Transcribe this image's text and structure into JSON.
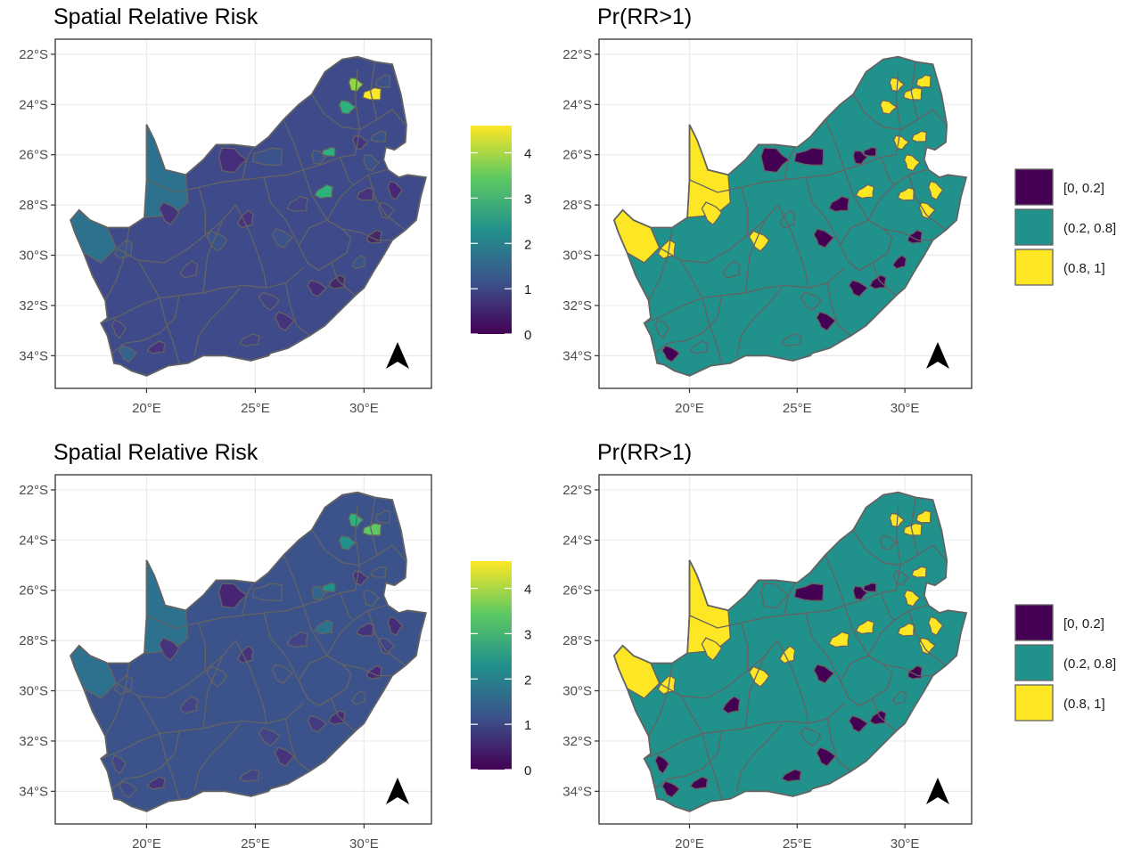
{
  "panels": [
    {
      "id": "p1",
      "title": "Spatial Relative Risk",
      "kind": "continuous",
      "lat_ticks": [
        "22°S",
        "24°S",
        "26°S",
        "28°S",
        "30°S",
        "32°S",
        "34°S"
      ],
      "lon_ticks": [
        "20°E",
        "25°E",
        "30°E"
      ],
      "legend": {
        "ticks": [
          "0",
          "1",
          "2",
          "3",
          "4"
        ],
        "range": [
          0,
          4.6
        ]
      },
      "variant": "a"
    },
    {
      "id": "p2",
      "title": "Pr(RR>1)",
      "kind": "categorical",
      "lat_ticks": [
        "22°S",
        "24°S",
        "26°S",
        "28°S",
        "30°S",
        "32°S",
        "34°S"
      ],
      "lon_ticks": [
        "20°E",
        "25°E",
        "30°E"
      ],
      "legend": {
        "classes": [
          "[0, 0.2]",
          "(0.2, 0.8]",
          "(0.8, 1]"
        ]
      },
      "variant": "a"
    },
    {
      "id": "p3",
      "title": "Spatial Relative Risk",
      "kind": "continuous",
      "lat_ticks": [
        "22°S",
        "24°S",
        "26°S",
        "28°S",
        "30°S",
        "32°S",
        "34°S"
      ],
      "lon_ticks": [
        "20°E",
        "25°E",
        "30°E"
      ],
      "legend": {
        "ticks": [
          "0",
          "1",
          "2",
          "3",
          "4"
        ],
        "range": [
          0,
          4.6
        ]
      },
      "variant": "b"
    },
    {
      "id": "p4",
      "title": "Pr(RR>1)",
      "kind": "categorical",
      "lat_ticks": [
        "22°S",
        "24°S",
        "26°S",
        "28°S",
        "30°S",
        "32°S",
        "34°S"
      ],
      "lon_ticks": [
        "20°E",
        "25°E",
        "30°E"
      ],
      "legend": {
        "classes": [
          "[0, 0.2]",
          "(0.2, 0.8]",
          "(0.8, 1]"
        ]
      },
      "variant": "b"
    }
  ],
  "colors": {
    "viridis": [
      "#440154",
      "#3b528b",
      "#21918c",
      "#5ec962",
      "#fde725"
    ],
    "class_low": "#440154",
    "class_mid": "#21918c",
    "class_high": "#fde725",
    "border": "#636363",
    "grid": "#ebebeb",
    "panel_border": "#333333"
  },
  "north_arrow_icon": "north-arrow-icon"
}
